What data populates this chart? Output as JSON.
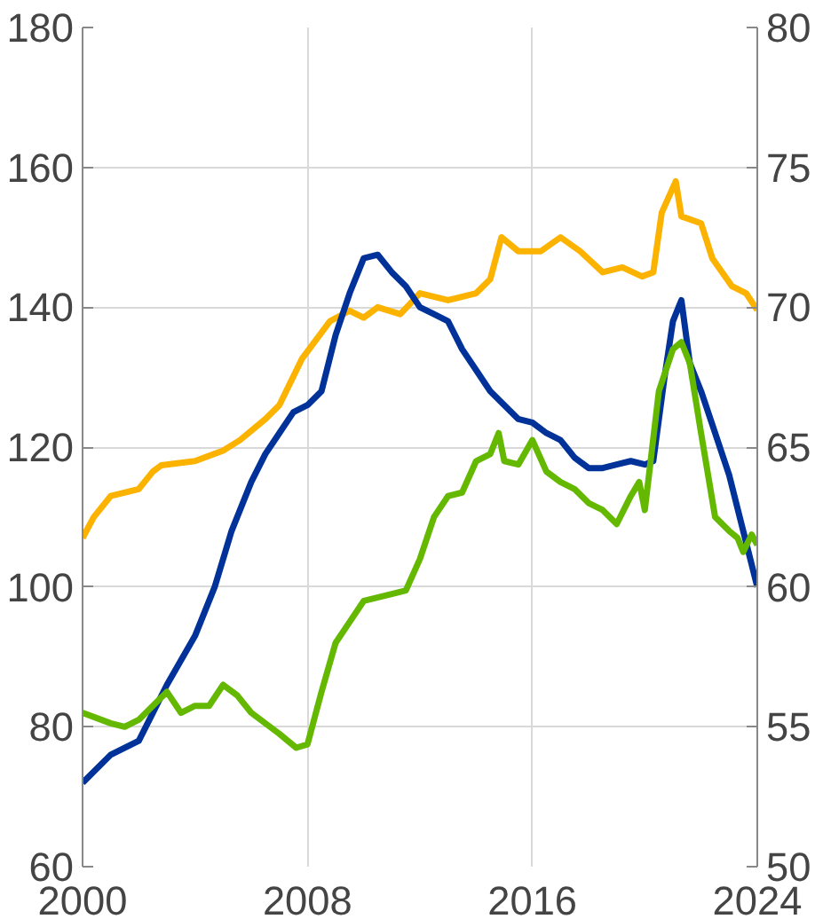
{
  "chart_data": {
    "type": "line",
    "xlim": [
      2000,
      2024
    ],
    "xticks": [
      2000,
      2008,
      2016,
      2024
    ],
    "ylim": [
      60,
      180
    ],
    "yticks": [
      60,
      80,
      100,
      120,
      140,
      160,
      180
    ],
    "y2lim": [
      50,
      80
    ],
    "y2ticks": [
      50,
      55,
      60,
      65,
      70,
      75,
      80
    ],
    "grid": true,
    "line_style": "solid",
    "series": [
      {
        "color": "#fbb300",
        "x": [
          2000,
          2000.4,
          2001,
          2002,
          2002.5,
          2002.8,
          2004,
          2005,
          2005.6,
          2006.5,
          2007,
          2007.8,
          2008.8,
          2009.5,
          2010,
          2010.5,
          2011.3,
          2012,
          2013,
          2014,
          2014.5,
          2014.9,
          2015.5,
          2016.3,
          2017,
          2017.7,
          2018.5,
          2019.2,
          2019.9,
          2020.3,
          2020.6,
          2021.1,
          2021.3,
          2022,
          2022.4,
          2023.1,
          2023.6,
          2024
        ],
        "values": [
          107,
          110,
          113,
          114,
          116.5,
          117.4,
          118,
          119.5,
          121,
          124,
          126,
          132.6,
          138,
          139.5,
          138.5,
          140,
          139,
          142,
          141,
          142,
          144,
          150,
          148,
          148,
          150,
          148,
          145,
          145.7,
          144.4,
          145,
          153.5,
          158,
          153,
          152,
          147,
          143,
          142,
          139.6
        ]
      },
      {
        "color": "#003299",
        "x": [
          2000,
          2001,
          2002,
          2002.5,
          2003,
          2004,
          2004.7,
          2005.3,
          2006,
          2006.5,
          2007,
          2007.5,
          2008,
          2008.5,
          2009,
          2009.5,
          2010,
          2010.5,
          2011,
          2011.5,
          2012,
          2012.5,
          2013,
          2013.5,
          2014,
          2014.5,
          2015,
          2015.5,
          2016,
          2016.5,
          2017,
          2017.5,
          2018,
          2018.5,
          2019,
          2019.5,
          2020,
          2020.3,
          2020.7,
          2021,
          2021.3,
          2021.6,
          2022,
          2022.5,
          2023,
          2023.5,
          2024
        ],
        "values": [
          72,
          76,
          78,
          82,
          86,
          93,
          100,
          108,
          115,
          119,
          122,
          125,
          126,
          128,
          136,
          142,
          147,
          147.5,
          145,
          143,
          140,
          139,
          138,
          134,
          131,
          128,
          126,
          124,
          123.5,
          122,
          121,
          118.5,
          117,
          117,
          117.5,
          118,
          117.5,
          118,
          130,
          138,
          141,
          132,
          128,
          122,
          116,
          108,
          100
        ]
      },
      {
        "color": "#65b800",
        "x": [
          2000,
          2001,
          2001.5,
          2002,
          2002.5,
          2003,
          2003.5,
          2004,
          2004.5,
          2005,
          2005.5,
          2006,
          2007,
          2007.6,
          2008,
          2008.5,
          2009,
          2009.5,
          2010,
          2011,
          2011.5,
          2012,
          2012.5,
          2013,
          2013.5,
          2014,
          2014.5,
          2014.8,
          2015,
          2015.5,
          2016,
          2016.5,
          2017,
          2017.5,
          2018,
          2018.5,
          2019,
          2019.5,
          2019.8,
          2020,
          2020.5,
          2021,
          2021.3,
          2021.6,
          2022,
          2022.5,
          2023,
          2023.3,
          2023.5,
          2023.8,
          2024
        ],
        "values": [
          82,
          80.5,
          80,
          81,
          83,
          85,
          82,
          83,
          83,
          86,
          84.5,
          82,
          79,
          77,
          77.5,
          85,
          92,
          95,
          98,
          99,
          99.5,
          104,
          110,
          113,
          113.5,
          118,
          119,
          122,
          118,
          117.5,
          121,
          116.5,
          115,
          114,
          112,
          111,
          109,
          113,
          115,
          111,
          128,
          134,
          135,
          132,
          122,
          110,
          108,
          107,
          105,
          107.5,
          106
        ]
      }
    ]
  }
}
